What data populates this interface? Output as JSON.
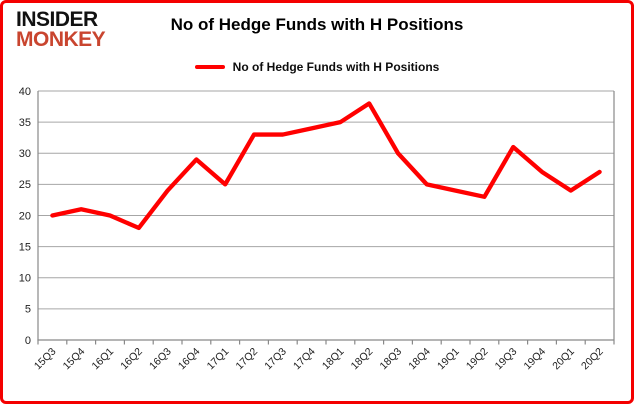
{
  "brand": {
    "line1": "INSIDER",
    "line2": "MONKEY",
    "line1_color": "#111111",
    "line2_color": "#c9452f"
  },
  "header": {
    "title": "No of Hedge Funds with H Positions"
  },
  "legend": {
    "label": "No of Hedge Funds with H Positions",
    "swatch_color": "#ff0000"
  },
  "colors": {
    "frame_border": "#f40000",
    "series_line": "#ff0000",
    "gridline": "#a6a6a6",
    "axis": "#898989",
    "tick_label": "#1f1f1f"
  },
  "chart_data": {
    "type": "line",
    "title": "No of Hedge Funds with H Positions",
    "categories": [
      "15Q3",
      "15Q4",
      "16Q1",
      "16Q2",
      "16Q3",
      "16Q4",
      "17Q1",
      "17Q2",
      "17Q3",
      "17Q4",
      "18Q1",
      "18Q2",
      "18Q3",
      "18Q4",
      "19Q1",
      "19Q2",
      "19Q3",
      "19Q4",
      "20Q1",
      "20Q2"
    ],
    "series": [
      {
        "name": "No of Hedge Funds with H Positions",
        "color": "#ff0000",
        "values": [
          20,
          21,
          20,
          18,
          24,
          29,
          25,
          33,
          33,
          34,
          35,
          38,
          30,
          25,
          24,
          23,
          31,
          27,
          24,
          27
        ]
      }
    ],
    "xlabel": "",
    "ylabel": "",
    "ylim": [
      0,
      40
    ],
    "yticks": [
      0,
      5,
      10,
      15,
      20,
      25,
      30,
      35,
      40
    ],
    "grid": true,
    "legend_position": "top",
    "x_tick_rotation": -45
  }
}
